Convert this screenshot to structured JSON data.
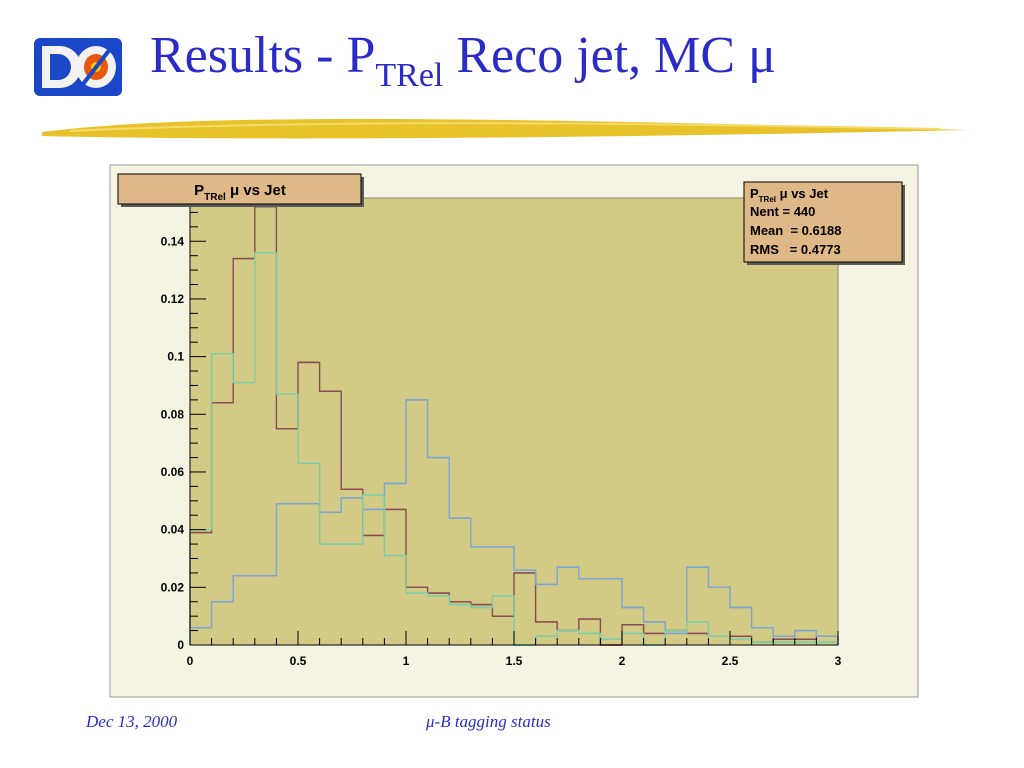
{
  "slide": {
    "title_prefix": "Results - P",
    "title_sub": "TRel",
    "title_suffix": " Reco jet, MC μ",
    "footer_date": "Dec 13, 2000",
    "footer_topic": "μ-B tagging status",
    "logo_icon": "d0-logo-icon"
  },
  "colors": {
    "title": "#2b2bc8",
    "frame_fill": "#d3ca86",
    "canvas_fill": "#f5f3e2",
    "label_box_fill": "#deb887",
    "series": [
      "#8a4a52",
      "#7aa6d8",
      "#7acfa8"
    ]
  },
  "stats": {
    "name_prefix": "P",
    "name_sub": "TRel",
    "name_suffix": " μ vs Jet",
    "nent": "Nent = 440",
    "mean": "Mean  = 0.6188",
    "rms": "RMS   = 0.4773"
  },
  "chart_data": {
    "type": "histogram",
    "title_prefix": "P",
    "title_sub": "TRel",
    "title_suffix": " μ vs Jet",
    "xlim": [
      0,
      3
    ],
    "ylim": [
      0,
      0.155
    ],
    "bin_width": 0.1,
    "x_ticks": [
      "0",
      "0.5",
      "1",
      "1.5",
      "2",
      "2.5",
      "3"
    ],
    "y_ticks": [
      "0",
      "0.02",
      "0.04",
      "0.06",
      "0.08",
      "0.1",
      "0.12",
      "0.14"
    ],
    "grid": false,
    "series": [
      {
        "color": "#8a4a52",
        "values": [
          0.039,
          0.084,
          0.134,
          0.152,
          0.075,
          0.098,
          0.088,
          0.054,
          0.038,
          0.047,
          0.02,
          0.018,
          0.015,
          0.014,
          0.01,
          0.025,
          0.008,
          0.005,
          0.009,
          0.0,
          0.007,
          0.004,
          0.005,
          0.004,
          0.003,
          0.003,
          0.001,
          0.002,
          0.002,
          0.003
        ]
      },
      {
        "color": "#7aa6d8",
        "values": [
          0.006,
          0.015,
          0.024,
          0.024,
          0.049,
          0.049,
          0.046,
          0.051,
          0.047,
          0.056,
          0.085,
          0.065,
          0.044,
          0.034,
          0.034,
          0.026,
          0.021,
          0.027,
          0.023,
          0.023,
          0.013,
          0.008,
          0.004,
          0.027,
          0.02,
          0.013,
          0.006,
          0.003,
          0.005,
          0.003
        ]
      },
      {
        "color": "#7acfa8",
        "values": [
          0.04,
          0.101,
          0.091,
          0.136,
          0.087,
          0.063,
          0.035,
          0.035,
          0.052,
          0.031,
          0.018,
          0.017,
          0.014,
          0.013,
          0.017,
          0.0,
          0.003,
          0.005,
          0.004,
          0.002,
          0.004,
          0.0,
          0.005,
          0.008,
          0.003,
          0.002,
          0.001,
          0.001,
          0.001,
          0.001
        ]
      }
    ]
  }
}
